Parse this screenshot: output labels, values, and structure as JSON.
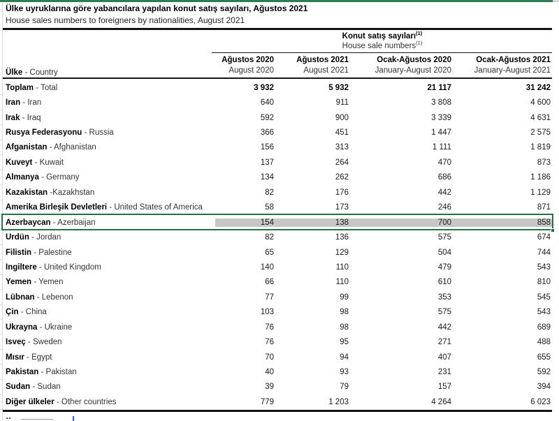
{
  "accent": {
    "top_bar_color": "#2e7d52",
    "selection_border_color": "#217346",
    "selection_fill_color": "#c7c7c7"
  },
  "page": {
    "title_tr": "Ülke uyruklarına göre yabancılara yapılan konut satış sayıları, Ağustos 2021",
    "title_en": "House sales numbers to foreigners by nationalities, August 2021"
  },
  "table": {
    "group_header": {
      "tr": "Konut satış sayıları",
      "en": "House sale numbers",
      "footnote_marker": "(1)"
    },
    "row_header": {
      "tr": "Ülke",
      "sep": " - ",
      "en": "Country"
    },
    "columns": [
      {
        "tr": "Ağustos 2020",
        "en": "August 2020"
      },
      {
        "tr": "Ağustos 2021",
        "en": "August 2021"
      },
      {
        "tr": "Ocak-Ağustos 2020",
        "en": "January-August 2020"
      },
      {
        "tr": "Ocak-Ağustos 2021",
        "en": "January-August 2021"
      }
    ],
    "rows": [
      {
        "tr": "Toplam",
        "sep": " - ",
        "en": "Total",
        "values": [
          "3 932",
          "5 932",
          "21 117",
          "31 242"
        ],
        "bold_values": true
      },
      {
        "tr": "İran",
        "sep": " - ",
        "en": "Iran",
        "values": [
          "640",
          "911",
          "3 808",
          "4 600"
        ]
      },
      {
        "tr": "Irak",
        "sep": " - ",
        "en": "Iraq",
        "values": [
          "592",
          "900",
          "3 339",
          "4 631"
        ]
      },
      {
        "tr": "Rusya Federasyonu",
        "sep": " - ",
        "en": "Russia",
        "values": [
          "366",
          "451",
          "1 447",
          "2 575"
        ]
      },
      {
        "tr": "Afganistan",
        "sep": " - ",
        "en": "Afghanistan",
        "values": [
          "156",
          "313",
          "1 111",
          "1 819"
        ]
      },
      {
        "tr": "Kuveyt",
        "sep": " - ",
        "en": "Kuwait",
        "values": [
          "137",
          "264",
          "470",
          "873"
        ]
      },
      {
        "tr": "Almanya",
        "sep": " - ",
        "en": "Germany",
        "values": [
          "134",
          "262",
          "686",
          "1 186"
        ]
      },
      {
        "tr": "Kazakistan",
        "sep": " -",
        "en": "Kazakhstan",
        "values": [
          "82",
          "176",
          "442",
          "1 129"
        ]
      },
      {
        "tr": "Amerika Birleşik Devletleri",
        "sep": " - ",
        "en": "United States of America",
        "values": [
          "58",
          "173",
          "246",
          "871"
        ]
      },
      {
        "tr": "Azerbaycan",
        "sep": " - ",
        "en": "Azerbaijan",
        "values": [
          "154",
          "138",
          "700",
          "858"
        ],
        "selected": true
      },
      {
        "tr": "Ürdün",
        "sep": " - ",
        "en": "Jordan",
        "values": [
          "82",
          "136",
          "575",
          "674"
        ]
      },
      {
        "tr": "Filistin",
        "sep": " - ",
        "en": "Palestine",
        "values": [
          "65",
          "129",
          "504",
          "744"
        ]
      },
      {
        "tr": "İngiltere",
        "sep": " - ",
        "en": "United Kingdom",
        "values": [
          "140",
          "110",
          "479",
          "543"
        ]
      },
      {
        "tr": "Yemen",
        "sep": " - ",
        "en": "Yemen",
        "values": [
          "66",
          "110",
          "610",
          "810"
        ]
      },
      {
        "tr": "Lübnan",
        "sep": " - ",
        "en": "Lebenon",
        "values": [
          "77",
          "99",
          "353",
          "545"
        ]
      },
      {
        "tr": "Çin",
        "sep": " - ",
        "en": "China",
        "values": [
          "103",
          "98",
          "575",
          "543"
        ]
      },
      {
        "tr": "Ukrayna",
        "sep": " - ",
        "en": "Ukraine",
        "values": [
          "76",
          "98",
          "442",
          "689"
        ]
      },
      {
        "tr": "İsveç",
        "sep": " - ",
        "en": "Sweden",
        "values": [
          "76",
          "95",
          "271",
          "488"
        ]
      },
      {
        "tr": "Mısır",
        "sep": " - ",
        "en": "Egypt",
        "values": [
          "70",
          "94",
          "407",
          "655"
        ]
      },
      {
        "tr": "Pakistan",
        "sep": " - ",
        "en": "Pakistan",
        "values": [
          "40",
          "93",
          "231",
          "592"
        ]
      },
      {
        "tr": "Sudan",
        "sep": " - ",
        "en": "Sudan",
        "values": [
          "39",
          "79",
          "157",
          "394"
        ]
      },
      {
        "tr": "Diğer ülkeler",
        "sep": " - ",
        "en": "Other countries",
        "values": [
          "779",
          "1 203",
          "4 264",
          "6 023"
        ]
      }
    ]
  }
}
